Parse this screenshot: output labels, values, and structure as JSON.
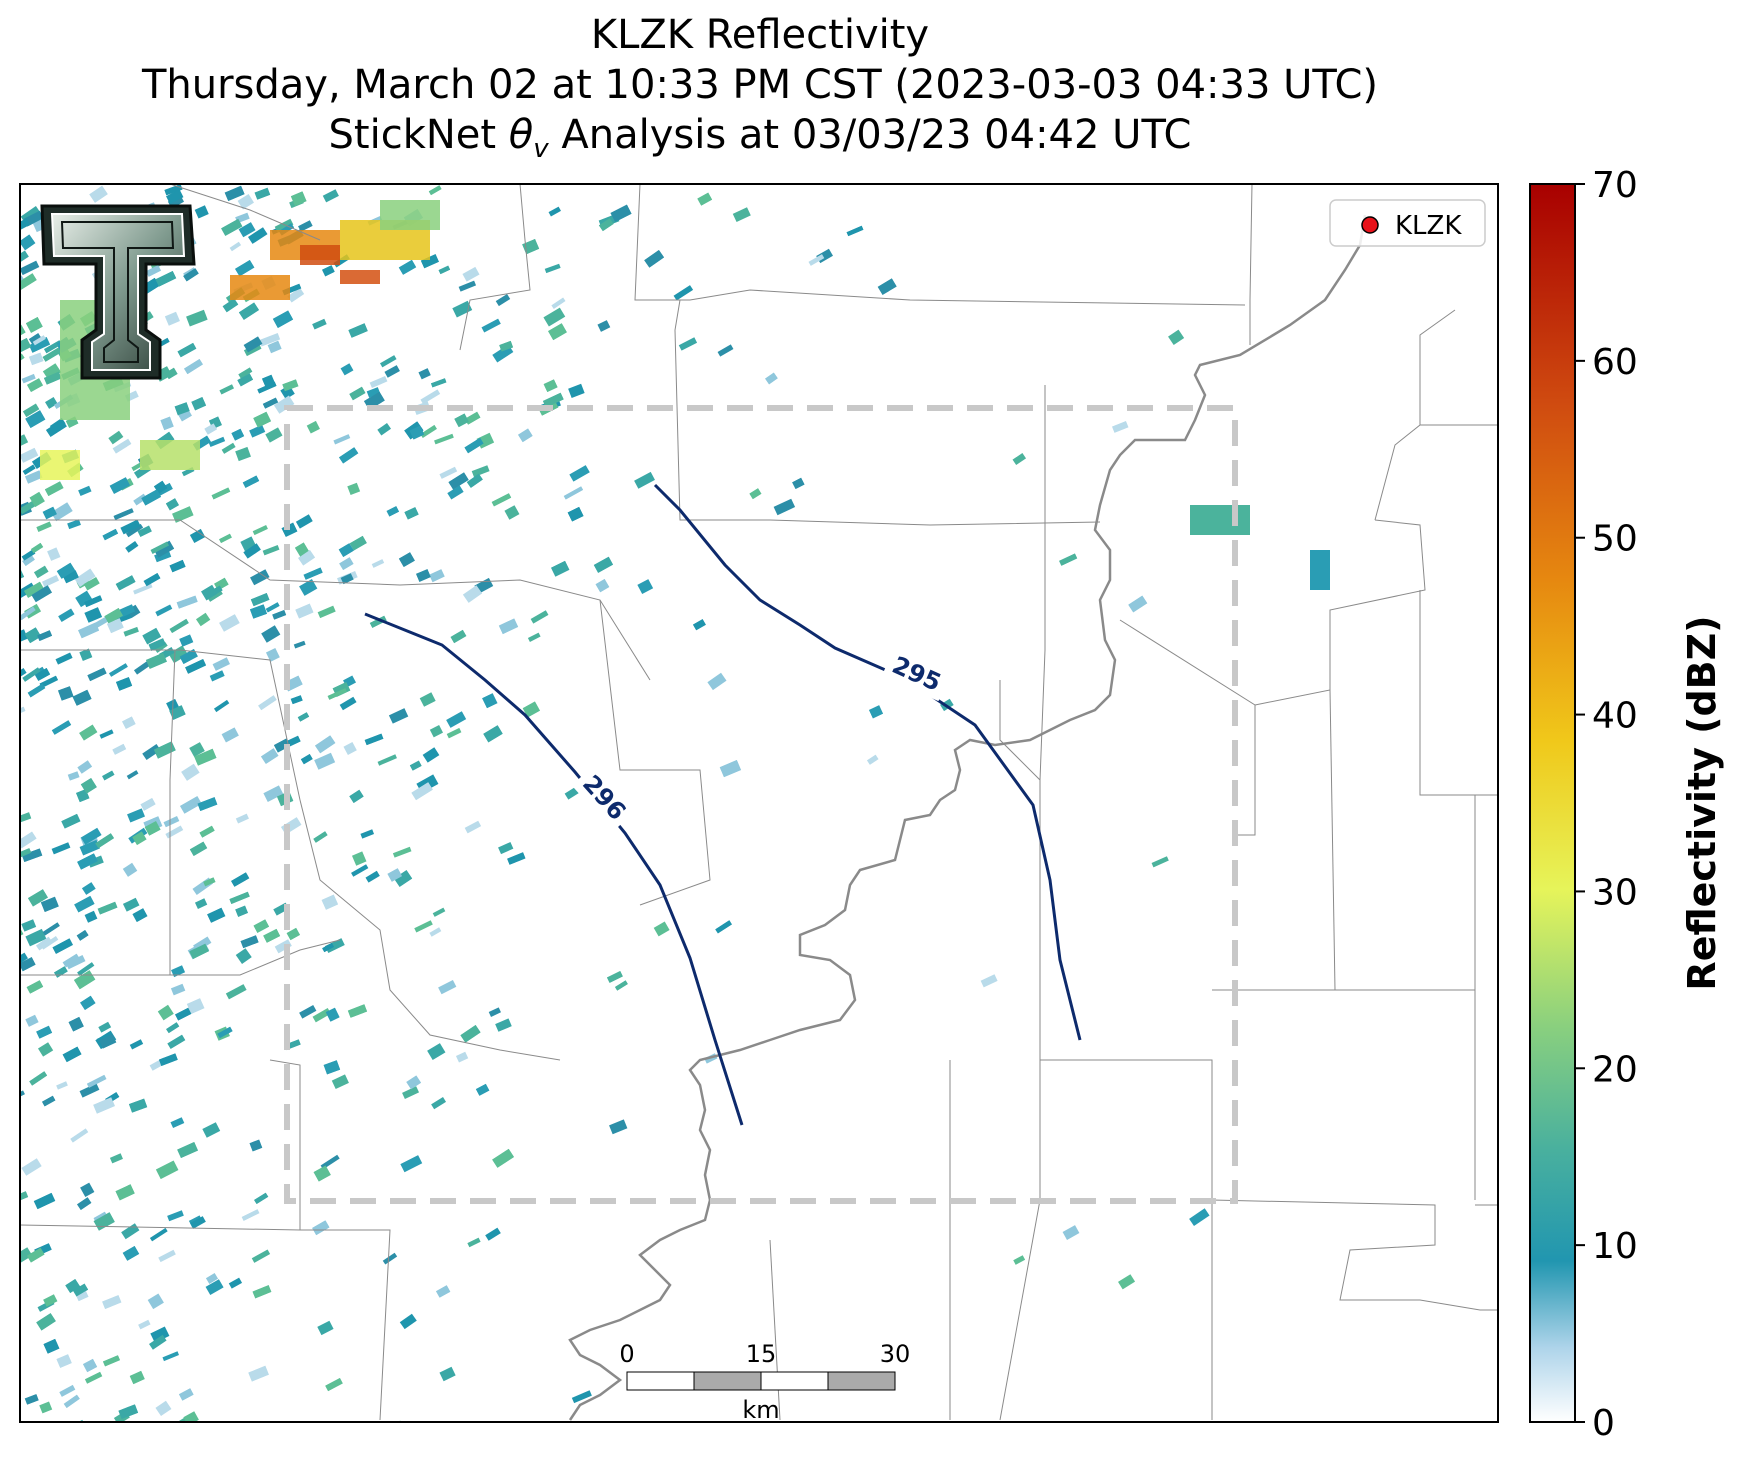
{
  "title": {
    "line1": "KLZK Reflectivity",
    "line2": "Thursday, March 02 at 10:33 PM CST (2023-03-03 04:33 UTC)",
    "line3_prefix": "StickNet ",
    "line3_symbol": "θ",
    "line3_sub": "v",
    "line3_suffix": " Analysis at 03/03/23 04:42 UTC"
  },
  "legend": {
    "marker_color": "#e8121a",
    "label": "KLZK"
  },
  "colorbar": {
    "title": "Reflectivity (dBZ)",
    "min": 0,
    "max": 70,
    "ticks": [
      "0",
      "10",
      "20",
      "30",
      "40",
      "50",
      "60",
      "70"
    ]
  },
  "contours": [
    {
      "label": "295",
      "color": "#0d2a6c"
    },
    {
      "label": "296",
      "color": "#0d2a6c"
    }
  ],
  "scale_bar": {
    "ticks": [
      "0",
      "15",
      "30"
    ],
    "unit": "km"
  },
  "logo": {
    "text": "T",
    "icon": "texas-tech-logo"
  }
}
